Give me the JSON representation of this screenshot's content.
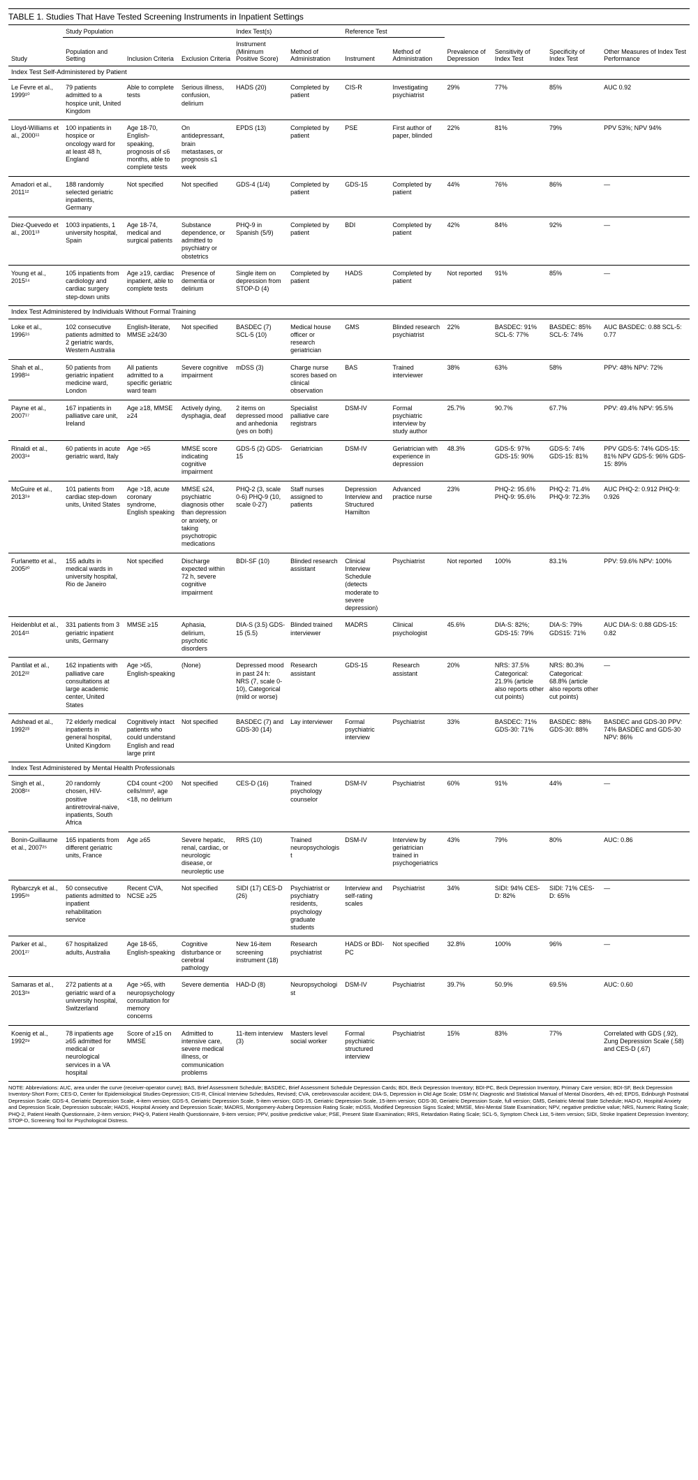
{
  "title": "TABLE 1. Studies That Have Tested Screening Instruments in Inpatient Settings",
  "colgroups": {
    "g1": "Study Population",
    "g2": "Index Test(s)",
    "g3": "Reference Test"
  },
  "columns": {
    "c0": "Study",
    "c1": "Population and Setting",
    "c2": "Inclusion Criteria",
    "c3": "Exclusion Criteria",
    "c4": "Instrument (Minimum Positive Score)",
    "c5": "Method of Administration",
    "c6": "Instrument",
    "c7": "Method of Administration",
    "c8": "Prevalence of Depression",
    "c9": "Sensitivity of Index Test",
    "c10": "Specificity of Index Test",
    "c11": "Other Measures of Index Test Performance"
  },
  "sections": [
    {
      "label": "Index Test Self-Administered by Patient",
      "rows": [
        {
          "c0": "Le Fevre et al., 1999¹⁰",
          "c1": "79 patients admitted to a hospice unit, United Kingdom",
          "c2": "Able to complete tests",
          "c3": "Serious illness, confusion, delirium",
          "c4": "HADS (20)",
          "c5": "Completed by patient",
          "c6": "CIS-R",
          "c7": "Investigating psychiatrist",
          "c8": "29%",
          "c9": "77%",
          "c10": "85%",
          "c11": "AUC 0.92"
        },
        {
          "c0": "Lloyd-Williams et al., 2000¹¹",
          "c1": "100 inpatients in hospice or oncology ward for at least 48 h, England",
          "c2": "Age 18-70, English-speaking, prognosis of ≤6 months, able to complete tests",
          "c3": "On antidepressant, brain metastases, or prognosis ≤1 week",
          "c4": "EPDS (13)",
          "c5": "Completed by patient",
          "c6": "PSE",
          "c7": "First author of paper, blinded",
          "c8": "22%",
          "c9": "81%",
          "c10": "79%",
          "c11": "PPV 53%; NPV 94%"
        },
        {
          "c0": "Amadori et al., 2011¹²",
          "c1": "188 randomly selected geriatric inpatients, Germany",
          "c2": "Not specified",
          "c3": "Not specified",
          "c4": "GDS-4 (1/4)",
          "c5": "Completed by patient",
          "c6": "GDS-15",
          "c7": "Completed by patient",
          "c8": "44%",
          "c9": "76%",
          "c10": "86%",
          "c11": "—"
        },
        {
          "c0": "Diez-Quevedo et al., 2001¹³",
          "c1": "1003 inpatients, 1 university hospital, Spain",
          "c2": "Age 18-74, medical and surgical patients",
          "c3": "Substance dependence, or admitted to psychiatry or obstetrics",
          "c4": "PHQ-9 in Spanish (5/9)",
          "c5": "Completed by patient",
          "c6": "BDI",
          "c7": "Completed by patient",
          "c8": "42%",
          "c9": "84%",
          "c10": "92%",
          "c11": "—"
        },
        {
          "c0": "Young et al., 2015¹⁴",
          "c1": "105 inpatients from cardiology and cardiac surgery step-down units",
          "c2": "Age ≥19, cardiac inpatient, able to complete tests",
          "c3": "Presence of dementia or delirium",
          "c4": "Single item on depression from STOP-D (4)",
          "c5": "Completed by patient",
          "c6": "HADS",
          "c7": "Completed by patient",
          "c8": "Not reported",
          "c9": "91%",
          "c10": "85%",
          "c11": "—"
        }
      ]
    },
    {
      "label": "Index Test Administered by Individuals Without Formal Training",
      "rows": [
        {
          "c0": "Loke et al., 1996¹⁵",
          "c1": "102 consecutive patients admitted to 2 geriatric wards, Western Australia",
          "c2": "English-literate, MMSE ≥24/30",
          "c3": "Not specified",
          "c4": "BASDEC (7) SCL-5 (10)",
          "c5": "Medical house officer or research geriatrician",
          "c6": "GMS",
          "c7": "Blinded research psychiatrist",
          "c8": "22%",
          "c9": "BASDEC: 91% SCL-5: 77%",
          "c10": "BASDEC: 85% SCL-5: 74%",
          "c11": "AUC BASDEC: 0.88 SCL-5: 0.77"
        },
        {
          "c0": "Shah et al., 1998¹⁶",
          "c1": "50 patients from geriatric inpatient medicine ward, London",
          "c2": "All patients admitted to a specific geriatric ward team",
          "c3": "Severe cognitive impairment",
          "c4": "mDSS (3)",
          "c5": "Charge nurse scores based on clinical observation",
          "c6": "BAS",
          "c7": "Trained interviewer",
          "c8": "38%",
          "c9": "63%",
          "c10": "58%",
          "c11": "PPV: 48% NPV: 72%"
        },
        {
          "c0": "Payne et al., 2007¹⁷",
          "c1": "167 inpatients in palliative care unit, Ireland",
          "c2": "Age ≥18, MMSE ≥24",
          "c3": "Actively dying, dysphagia, deaf",
          "c4": "2 items on depressed mood and anhedonia (yes on both)",
          "c5": "Specialist palliative care registrars",
          "c6": "DSM-IV",
          "c7": "Formal psychiatric interview by study author",
          "c8": "25.7%",
          "c9": "90.7%",
          "c10": "67.7%",
          "c11": "PPV: 49.4% NPV: 95.5%"
        },
        {
          "c0": "Rinaldi et al., 2003¹⁸",
          "c1": "60 patients in acute geriatric ward, Italy",
          "c2": "Age >65",
          "c3": "MMSE score indicating cognitive impairment",
          "c4": "GDS-5 (2) GDS-15",
          "c5": "Geriatrician",
          "c6": "DSM-IV",
          "c7": "Geriatrician with experience in depression",
          "c8": "48.3%",
          "c9": "GDS-5: 97% GDS-15: 90%",
          "c10": "GDS-5: 74% GDS-15: 81%",
          "c11": "PPV GDS-5: 74% GDS-15: 81% NPV GDS-5: 96% GDS-15: 89%"
        },
        {
          "c0": "McGuire et al., 2013¹⁹",
          "c1": "101 patients from cardiac step-down units, United States",
          "c2": "Age >18, acute coronary syndrome, English speaking",
          "c3": "MMSE ≤24, psychiatric diagnosis other than depression or anxiety, or taking psychotropic medications",
          "c4": "PHQ-2 (3, scale 0-6) PHQ-9 (10, scale 0-27)",
          "c5": "Staff nurses assigned to patients",
          "c6": "Depression Interview and Structured Hamilton",
          "c7": "Advanced practice nurse",
          "c8": "23%",
          "c9": "PHQ-2: 95.6% PHQ-9: 95.6%",
          "c10": "PHQ-2: 71.4% PHQ-9: 72.3%",
          "c11": "AUC PHQ-2: 0.912 PHQ-9: 0.926"
        },
        {
          "c0": "Furlanetto et al., 2005²⁰",
          "c1": "155 adults in medical wards in university hospital, Rio de Janeiro",
          "c2": "Not specified",
          "c3": "Discharge expected within 72 h, severe cognitive impairment",
          "c4": "BDI-SF (10)",
          "c5": "Blinded research assistant",
          "c6": "Clinical Interview Schedule (detects moderate to severe depression)",
          "c7": "Psychiatrist",
          "c8": "Not reported",
          "c9": "100%",
          "c10": "83.1%",
          "c11": "PPV: 59.6% NPV: 100%"
        },
        {
          "c0": "Heidenblut et al., 2014²¹",
          "c1": "331 patients from 3 geriatric inpatient units, Germany",
          "c2": "MMSE ≥15",
          "c3": "Aphasia, delirium, psychotic disorders",
          "c4": "DIA-S (3.5) GDS-15 (5.5)",
          "c5": "Blinded trained interviewer",
          "c6": "MADRS",
          "c7": "Clinical psychologist",
          "c8": "45.6%",
          "c9": "DIA-S: 82%; GDS-15: 79%",
          "c10": "DIA-S: 79% GDS15: 71%",
          "c11": "AUC DIA-S: 0.88 GDS-15: 0.82"
        },
        {
          "c0": "Pantilat et al., 2012²²",
          "c1": "162 inpatients with palliative care consultations at large academic center, United States",
          "c2": "Age >65, English-speaking",
          "c3": "(None)",
          "c4": "Depressed mood in past 24 h: NRS (7, scale 0-10), Categorical (mild or worse)",
          "c5": "Research assistant",
          "c6": "GDS-15",
          "c7": "Research assistant",
          "c8": "20%",
          "c9": "NRS: 37.5% Categorical: 21.9% (article also reports other cut points)",
          "c10": "NRS: 80.3% Categorical: 68.8% (article also reports other cut points)",
          "c11": "—"
        },
        {
          "c0": "Adshead et al., 1992²³",
          "c1": "72 elderly medical inpatients in general hospital, United Kingdom",
          "c2": "Cognitively intact patients who could understand English and read large print",
          "c3": "Not specified",
          "c4": "BASDEC (7) and GDS-30 (14)",
          "c5": "Lay interviewer",
          "c6": "Formal psychiatric interview",
          "c7": "Psychiatrist",
          "c8": "33%",
          "c9": "BASDEC: 71% GDS-30: 71%",
          "c10": "BASDEC: 88% GDS-30: 88%",
          "c11": "BASDEC and GDS-30 PPV: 74% BASDEC and GDS-30 NPV: 86%"
        }
      ]
    },
    {
      "label": "Index Test Administered by Mental Health Professionals",
      "rows": [
        {
          "c0": "Singh et al., 2008²⁴",
          "c1": "20 randomly chosen, HIV-positive antiretroviral-naive, inpatients, South Africa",
          "c2": "CD4 count <200 cells/mm³, age <18, no delirium",
          "c3": "Not specified",
          "c4": "CES-D (16)",
          "c5": "Trained psychology counselor",
          "c6": "DSM-IV",
          "c7": "Psychiatrist",
          "c8": "60%",
          "c9": "91%",
          "c10": "44%",
          "c11": "—"
        },
        {
          "c0": "Bonin-Guillaume et al., 2007²⁵",
          "c1": "165 inpatients from different geriatric units, France",
          "c2": "Age ≥65",
          "c3": "Severe hepatic, renal, cardiac, or neurologic disease, or neuroleptic use",
          "c4": "RRS (10)",
          "c5": "Trained neuropsychologist",
          "c6": "DSM-IV",
          "c7": "Interview by geriatrician trained in psychogeriatrics",
          "c8": "43%",
          "c9": "79%",
          "c10": "80%",
          "c11": "AUC: 0.86"
        },
        {
          "c0": "Rybarczyk et al., 1995²⁶",
          "c1": "50 consecutive patients admitted to inpatient rehabilitation service",
          "c2": "Recent CVA, NCSE ≥25",
          "c3": "Not specified",
          "c4": "SIDI (17) CES-D (26)",
          "c5": "Psychiatrist or psychiatry residents, psychology graduate students",
          "c6": "Interview and self-rating scales",
          "c7": "Psychiatrist",
          "c8": "34%",
          "c9": "SIDI: 94% CES-D: 82%",
          "c10": "SIDI: 71% CES-D: 65%",
          "c11": "—"
        },
        {
          "c0": "Parker et al., 2001²⁷",
          "c1": "67 hospitalized adults, Australia",
          "c2": "Age 18-65, English-speaking",
          "c3": "Cognitive disturbance or cerebral pathology",
          "c4": "New 16-item screening instrument (18)",
          "c5": "Research psychiatrist",
          "c6": "HADS or BDI-PC",
          "c7": "Not specified",
          "c8": "32.8%",
          "c9": "100%",
          "c10": "96%",
          "c11": "—"
        },
        {
          "c0": "Samaras et al., 2013²⁸",
          "c1": "272 patients at a geriatric ward of a university hospital, Switzerland",
          "c2": "Age >65, with neuropsychology consultation for memory concerns",
          "c3": "Severe dementia",
          "c4": "HAD-D (8)",
          "c5": "Neuropsychologist",
          "c6": "DSM-IV",
          "c7": "Psychiatrist",
          "c8": "39.7%",
          "c9": "50.9%",
          "c10": "69.5%",
          "c11": "AUC: 0.60"
        },
        {
          "c0": "Koenig et al., 1992²⁹",
          "c1": "78 inpatients age ≥65 admitted for medical or neurological services in a VA hospital",
          "c2": "Score of ≥15 on MMSE",
          "c3": "Admitted to intensive care, severe medical illness, or communication problems",
          "c4": "11-item interview (3)",
          "c5": "Masters level social worker",
          "c6": "Formal psychiatric structured interview",
          "c7": "Psychiatrist",
          "c8": "15%",
          "c9": "83%",
          "c10": "77%",
          "c11": "Correlated with GDS (.92), Zung Depression Scale (.58) and CES-D (.67)"
        }
      ]
    }
  ],
  "note": "NOTE: Abbreviations: AUC, area under the curve (receiver-operator curve); BAS, Brief Assessment Schedule; BASDEC, Brief Assessment Schedule Depression Cards; BDI, Beck Depression Inventory; BDI-PC, Beck Depression Inventory, Primary Care version; BDI-SF, Beck Depression Inventory-Short Form; CES-D, Center for Epidemiological Studies-Depression; CIS-R, Clinical Interview Schedules, Revised; CVA, cerebrovascular accident; DIA-S, Depression in Old Age Scale; DSM-IV, Diagnostic and Statistical Manual of Mental Disorders, 4th ed; EPDS, Edinburgh Postnatal Depression Scale; GDS-4, Geriatric Depression Scale, 4-item version; GDS-5, Geriatric Depression Scale, 5-item version; GDS-15, Geriatric Depression Scale, 15-item version; GDS-30, Geriatric Depression Scale, full version; GMS, Geriatric Mental State Schedule; HAD-D, Hospital Anxiety and Depression Scale, Depression subscale; HADS, Hospital Anxiety and Depression Scale; MADRS, Montgomery-Asberg Depression Rating Scale; mDSS, Modified Depression Signs Scaled; MMSE, Mini-Mental State Examination; NPV, negative predictive value; NRS, Numeric Rating Scale; PHQ-2, Patient Health Questionnaire, 2-item version; PHQ-9, Patient Health Questionnaire, 9-item version; PPV, positive predictive value; PSE, Present State Examination; RRS, Retardation Rating Scale; SCL-5, Symptom Check List, 5-item version; SIDI, Stroke Inpatient Depression Inventory; STOP-D, Screening Tool for Psychological Distress."
}
